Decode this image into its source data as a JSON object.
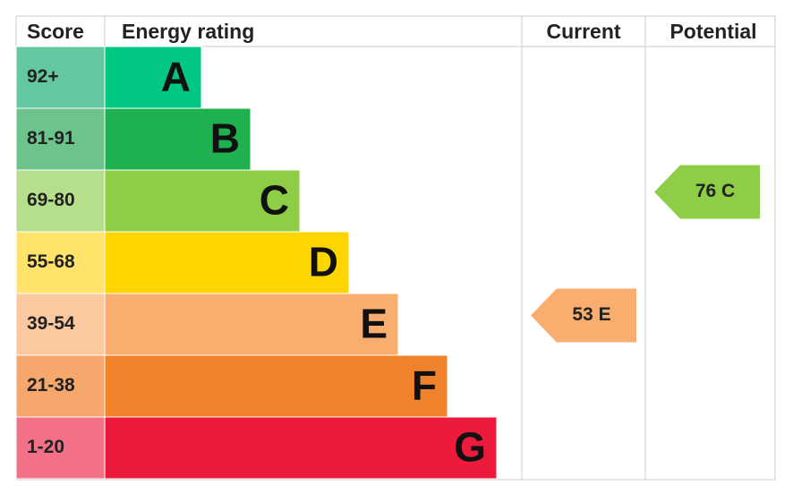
{
  "header": {
    "score": "Score",
    "energy_rating": "Energy rating",
    "current": "Current",
    "potential": "Potential"
  },
  "bands": [
    {
      "score": "92+",
      "rating": "A",
      "color": "#00c781",
      "score_color": "#63c7a0"
    },
    {
      "score": "81-91",
      "rating": "B",
      "color": "#1fb04f",
      "score_color": "#6cc38c"
    },
    {
      "score": "69-80",
      "rating": "C",
      "color": "#8dce46",
      "score_color": "#b6df8c"
    },
    {
      "score": "55-68",
      "rating": "D",
      "color": "#ffd500",
      "score_color": "#ffe36a"
    },
    {
      "score": "39-54",
      "rating": "E",
      "color": "#f9ad6f",
      "score_color": "#fbc9a0"
    },
    {
      "score": "21-38",
      "rating": "F",
      "color": "#f0822b",
      "score_color": "#f5a76c"
    },
    {
      "score": "1-20",
      "rating": "G",
      "color": "#ec1a3b",
      "score_color": "#f27186"
    }
  ],
  "current": {
    "label": "53 E",
    "color": "#f9ad6f"
  },
  "potential": {
    "label": "76 C",
    "color": "#8dce46"
  }
}
